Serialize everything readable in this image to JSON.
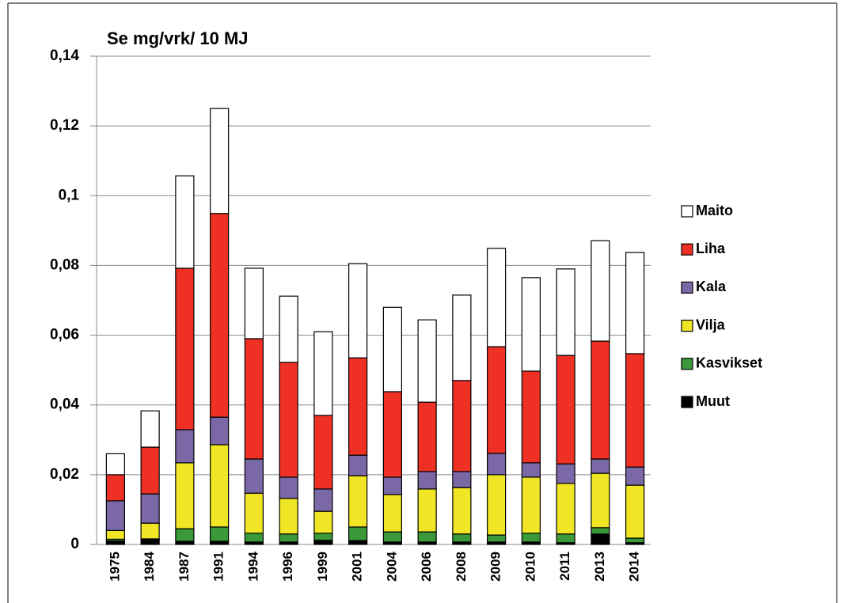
{
  "chart_data": {
    "type": "stacked_bar",
    "title": "Se mg/vrk/ 10 MJ",
    "categories": [
      "1975",
      "1984",
      "1987",
      "1991",
      "1994",
      "1996",
      "1999",
      "2001",
      "2004",
      "2006",
      "2008",
      "2009",
      "2010",
      "2011",
      "2013",
      "2014"
    ],
    "series": [
      {
        "name": "Muut",
        "color": "#000000",
        "values": [
          0.001,
          0.0014,
          0.0009,
          0.0009,
          0.0007,
          0.0007,
          0.0012,
          0.0011,
          0.0007,
          0.0007,
          0.0007,
          0.0007,
          0.0007,
          0.0005,
          0.003,
          0.0005
        ]
      },
      {
        "name": "Kasvikset",
        "color": "#3a9a3a",
        "values": [
          0.0005,
          0.0002,
          0.0036,
          0.0041,
          0.0025,
          0.0023,
          0.002,
          0.0039,
          0.0029,
          0.0029,
          0.0023,
          0.002,
          0.0025,
          0.0025,
          0.0018,
          0.0013
        ]
      },
      {
        "name": "Vilja",
        "color": "#f0e626",
        "values": [
          0.0025,
          0.0045,
          0.0189,
          0.0236,
          0.0115,
          0.0102,
          0.0063,
          0.0147,
          0.0107,
          0.0123,
          0.0133,
          0.0173,
          0.0161,
          0.0145,
          0.0156,
          0.0152
        ]
      },
      {
        "name": "Kala",
        "color": "#7b68a6",
        "values": [
          0.0085,
          0.0084,
          0.0095,
          0.0079,
          0.0098,
          0.0061,
          0.0064,
          0.0059,
          0.005,
          0.005,
          0.0046,
          0.0061,
          0.0041,
          0.0056,
          0.0041,
          0.0052
        ]
      },
      {
        "name": "Liha",
        "color": "#ee3124",
        "values": [
          0.0075,
          0.0134,
          0.0463,
          0.0584,
          0.0345,
          0.0329,
          0.0211,
          0.0279,
          0.0245,
          0.0199,
          0.0261,
          0.0306,
          0.0263,
          0.0311,
          0.0338,
          0.0325
        ]
      },
      {
        "name": "Maito",
        "color": "#ffffff",
        "values": [
          0.006,
          0.0104,
          0.0265,
          0.0301,
          0.0202,
          0.019,
          0.024,
          0.027,
          0.0242,
          0.0236,
          0.0245,
          0.0282,
          0.0268,
          0.0248,
          0.0288,
          0.029
        ]
      }
    ],
    "ylim": [
      0,
      0.14
    ],
    "yticks": [
      0,
      {
        "value": 0.02,
        "label": "0,02"
      },
      {
        "value": 0.04,
        "label": "0,04"
      },
      {
        "value": 0.06,
        "label": "0,06"
      },
      {
        "value": 0.08,
        "label": "0,08"
      },
      {
        "value": 0.1,
        "label": "0,1"
      },
      {
        "value": 0.12,
        "label": "0,12"
      },
      {
        "value": 0.14,
        "label": "0,14"
      }
    ],
    "grid": true,
    "legend": "right"
  }
}
